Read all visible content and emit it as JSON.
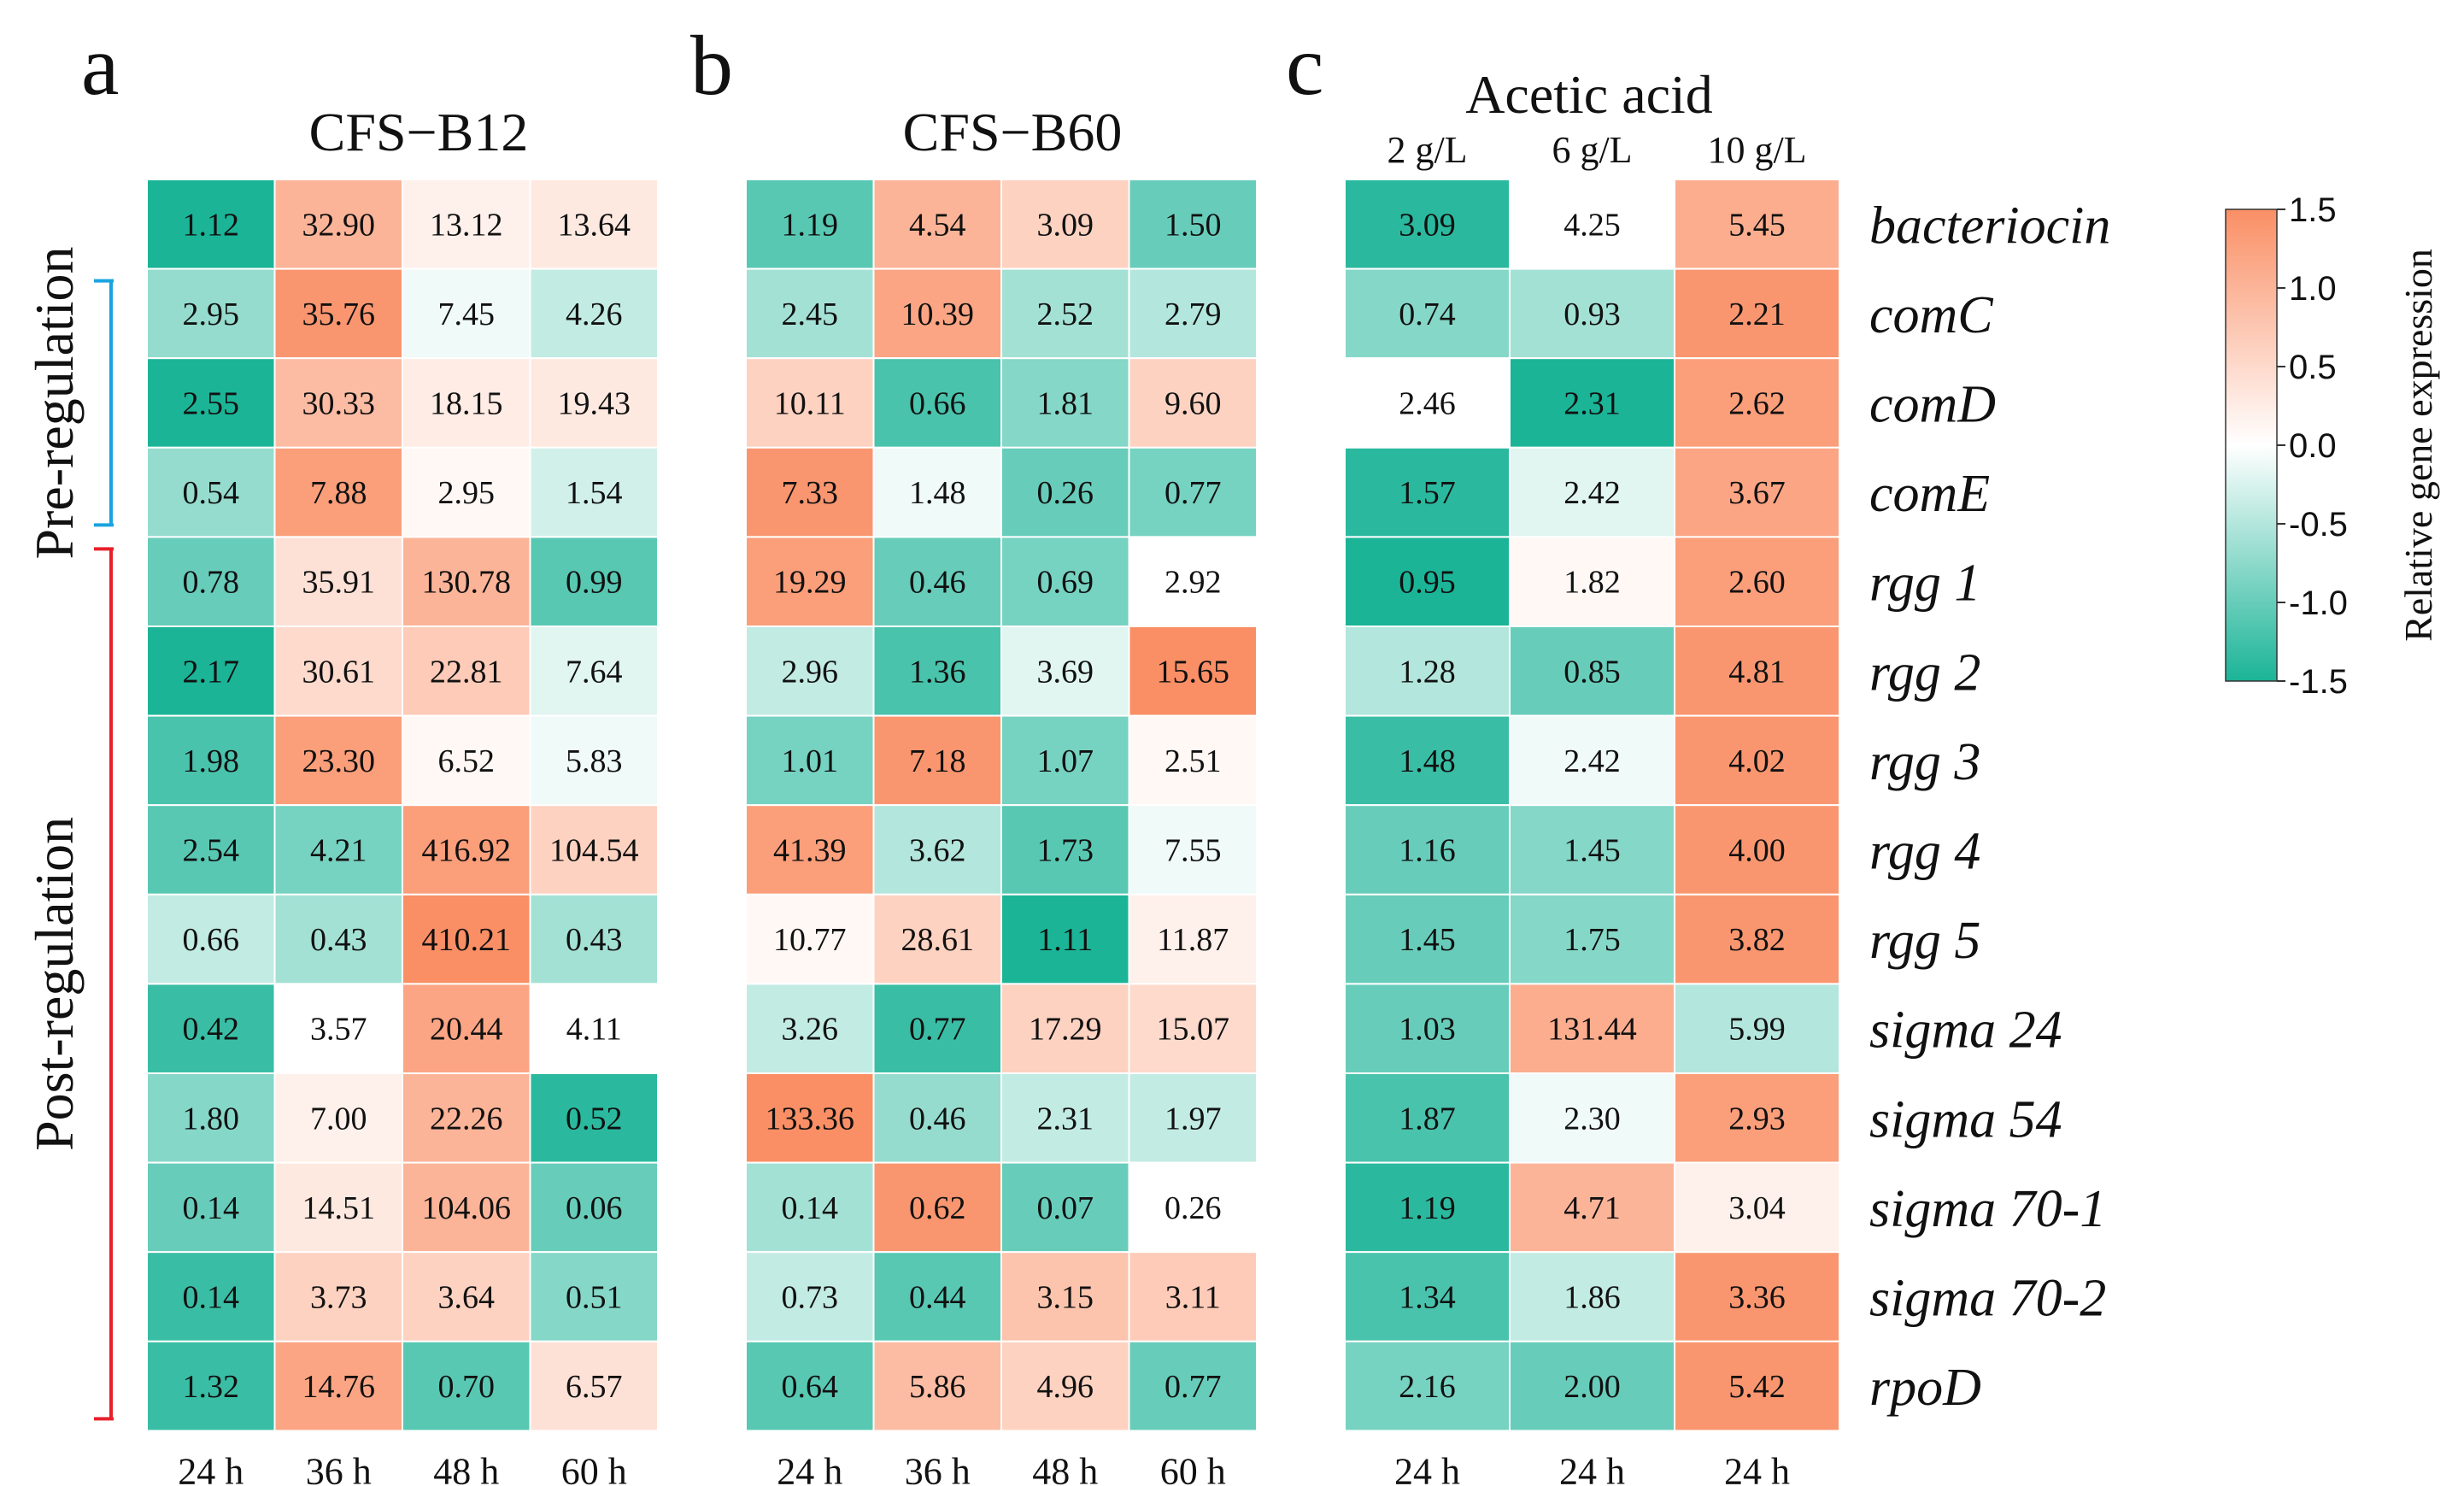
{
  "chart_data": [
    {
      "type": "heatmap",
      "panel": "a",
      "title": "CFS−B12",
      "columns": [
        "24 h",
        "36 h",
        "48 h",
        "60 h"
      ],
      "values": [
        [
          1.12,
          32.9,
          13.12,
          13.64
        ],
        [
          2.95,
          35.76,
          7.45,
          4.26
        ],
        [
          2.55,
          30.33,
          18.15,
          19.43
        ],
        [
          0.54,
          7.88,
          2.95,
          1.54
        ],
        [
          0.78,
          35.91,
          130.78,
          0.99
        ],
        [
          2.17,
          30.61,
          22.81,
          7.64
        ],
        [
          1.98,
          23.3,
          6.52,
          5.83
        ],
        [
          2.54,
          4.21,
          416.92,
          104.54
        ],
        [
          0.66,
          0.43,
          410.21,
          0.43
        ],
        [
          0.42,
          3.57,
          20.44,
          4.11
        ],
        [
          1.8,
          7.0,
          22.26,
          0.52
        ],
        [
          0.14,
          14.51,
          104.06,
          0.06
        ],
        [
          0.14,
          3.73,
          3.64,
          0.51
        ],
        [
          1.32,
          14.76,
          0.7,
          6.57
        ]
      ],
      "labels": [
        [
          "1.12",
          "32.90",
          "13.12",
          "13.64"
        ],
        [
          "2.95",
          "35.76",
          "7.45",
          "4.26"
        ],
        [
          "2.55",
          "30.33",
          "18.15",
          "19.43"
        ],
        [
          "0.54",
          "7.88",
          "2.95",
          "1.54"
        ],
        [
          "0.78",
          "35.91",
          "130.78",
          "0.99"
        ],
        [
          "2.17",
          "30.61",
          "22.81",
          "7.64"
        ],
        [
          "1.98",
          "23.30",
          "6.52",
          "5.83"
        ],
        [
          "2.54",
          "4.21",
          "416.92",
          "104.54"
        ],
        [
          "0.66",
          "0.43",
          "410.21",
          "0.43"
        ],
        [
          "0.42",
          "3.57",
          "20.44",
          "4.11"
        ],
        [
          "1.80",
          "7.00",
          "22.26",
          "0.52"
        ],
        [
          "0.14",
          "14.51",
          "104.06",
          "0.06"
        ],
        [
          "0.14",
          "3.73",
          "3.64",
          "0.51"
        ],
        [
          "1.32",
          "14.76",
          "0.70",
          "6.57"
        ]
      ],
      "z": [
        [
          -1.5,
          1.0,
          0.2,
          0.3
        ],
        [
          -0.7,
          1.4,
          -0.1,
          -0.4
        ],
        [
          -1.5,
          0.9,
          0.25,
          0.3
        ],
        [
          -0.7,
          1.3,
          0.1,
          -0.3
        ],
        [
          -1.0,
          0.4,
          1.0,
          -1.1
        ],
        [
          -1.5,
          0.5,
          0.7,
          -0.2
        ],
        [
          -1.2,
          1.3,
          0.1,
          -0.1
        ],
        [
          -1.1,
          -0.9,
          1.3,
          0.6
        ],
        [
          -0.4,
          -0.6,
          1.5,
          -0.6
        ],
        [
          -1.3,
          0.0,
          1.2,
          0.0
        ],
        [
          -0.8,
          0.2,
          1.0,
          -1.4
        ],
        [
          -1.0,
          0.3,
          1.0,
          -1.0
        ],
        [
          -1.3,
          0.6,
          0.6,
          -0.8
        ],
        [
          -1.3,
          1.2,
          -1.1,
          0.4
        ]
      ]
    },
    {
      "type": "heatmap",
      "panel": "b",
      "title": "CFS−B60",
      "columns": [
        "24 h",
        "36 h",
        "48 h",
        "60 h"
      ],
      "values": [
        [
          1.19,
          4.54,
          3.09,
          1.5
        ],
        [
          2.45,
          10.39,
          2.52,
          2.79
        ],
        [
          10.11,
          0.66,
          1.81,
          9.6
        ],
        [
          7.33,
          1.48,
          0.26,
          0.77
        ],
        [
          19.29,
          0.46,
          0.69,
          2.92
        ],
        [
          2.96,
          1.36,
          3.69,
          15.65
        ],
        [
          1.01,
          7.18,
          1.07,
          2.51
        ],
        [
          41.39,
          3.62,
          1.73,
          7.55
        ],
        [
          10.77,
          28.61,
          1.11,
          11.87
        ],
        [
          3.26,
          0.77,
          17.29,
          15.07
        ],
        [
          133.36,
          0.46,
          2.31,
          1.97
        ],
        [
          0.14,
          0.62,
          0.07,
          0.26
        ],
        [
          0.73,
          0.44,
          3.15,
          3.11
        ],
        [
          0.64,
          5.86,
          4.96,
          0.77
        ]
      ],
      "labels": [
        [
          "1.19",
          "4.54",
          "3.09",
          "1.50"
        ],
        [
          "2.45",
          "10.39",
          "2.52",
          "2.79"
        ],
        [
          "10.11",
          "0.66",
          "1.81",
          "9.60"
        ],
        [
          "7.33",
          "1.48",
          "0.26",
          "0.77"
        ],
        [
          "19.29",
          "0.46",
          "0.69",
          "2.92"
        ],
        [
          "2.96",
          "1.36",
          "3.69",
          "15.65"
        ],
        [
          "1.01",
          "7.18",
          "1.07",
          "2.51"
        ],
        [
          "41.39",
          "3.62",
          "1.73",
          "7.55"
        ],
        [
          "10.77",
          "28.61",
          "1.11",
          "11.87"
        ],
        [
          "3.26",
          "0.77",
          "17.29",
          "15.07"
        ],
        [
          "133.36",
          "0.46",
          "2.31",
          "1.97"
        ],
        [
          "0.14",
          "0.62",
          "0.07",
          "0.26"
        ],
        [
          "0.73",
          "0.44",
          "3.15",
          "3.11"
        ],
        [
          "0.64",
          "5.86",
          "4.96",
          "0.77"
        ]
      ],
      "z": [
        [
          -1.1,
          1.0,
          0.6,
          -1.0
        ],
        [
          -0.6,
          1.2,
          -0.6,
          -0.5
        ],
        [
          0.6,
          -1.2,
          -0.8,
          0.6
        ],
        [
          1.4,
          -0.1,
          -1.0,
          -0.9
        ],
        [
          1.3,
          -1.0,
          -0.9,
          0.0
        ],
        [
          -0.4,
          -1.2,
          -0.2,
          1.5
        ],
        [
          -0.9,
          1.4,
          -0.9,
          0.1
        ],
        [
          1.3,
          -0.5,
          -1.1,
          -0.1
        ],
        [
          0.1,
          0.6,
          -1.5,
          0.2
        ],
        [
          -0.4,
          -1.3,
          0.6,
          0.5
        ],
        [
          1.5,
          -0.7,
          -0.4,
          -0.4
        ],
        [
          -0.6,
          1.4,
          -1.0,
          0.0
        ],
        [
          -0.4,
          -1.1,
          0.8,
          0.7
        ],
        [
          -1.1,
          0.9,
          0.6,
          -1.0
        ]
      ]
    },
    {
      "type": "heatmap",
      "panel": "c",
      "title": "Acetic acid",
      "subcolumns": [
        "2 g/L",
        "6 g/L",
        "10 g/L"
      ],
      "columns": [
        "24 h",
        "24 h",
        "24 h"
      ],
      "rows": [
        "bacteriocin",
        "comC",
        "comD",
        "comE",
        "rgg 1",
        "rgg 2",
        "rgg 3",
        "rgg 4",
        "rgg 5",
        "sigma 24",
        "sigma 54",
        "sigma 70-1",
        "sigma 70-2",
        "rpoD"
      ],
      "values": [
        [
          3.09,
          4.25,
          5.45
        ],
        [
          0.74,
          0.93,
          2.21
        ],
        [
          2.46,
          2.31,
          2.62
        ],
        [
          1.57,
          2.42,
          3.67
        ],
        [
          0.95,
          1.82,
          2.6
        ],
        [
          1.28,
          0.85,
          4.81
        ],
        [
          1.48,
          2.42,
          4.02
        ],
        [
          1.16,
          1.45,
          4.0
        ],
        [
          1.45,
          1.75,
          3.82
        ],
        [
          1.03,
          131.44,
          5.99
        ],
        [
          1.87,
          2.3,
          2.93
        ],
        [
          1.19,
          4.71,
          3.04
        ],
        [
          1.34,
          1.86,
          3.36
        ],
        [
          2.16,
          2.0,
          5.42
        ]
      ],
      "labels": [
        [
          "3.09",
          "4.25",
          "5.45"
        ],
        [
          "0.74",
          "0.93",
          "2.21"
        ],
        [
          "2.46",
          "2.31",
          "2.62"
        ],
        [
          "1.57",
          "2.42",
          "3.67"
        ],
        [
          "0.95",
          "1.82",
          "2.60"
        ],
        [
          "1.28",
          "0.85",
          "4.81"
        ],
        [
          "1.48",
          "2.42",
          "4.02"
        ],
        [
          "1.16",
          "1.45",
          "4.00"
        ],
        [
          "1.45",
          "1.75",
          "3.82"
        ],
        [
          "1.03",
          "131.44",
          "5.99"
        ],
        [
          "1.87",
          "2.30",
          "2.93"
        ],
        [
          "1.19",
          "4.71",
          "3.04"
        ],
        [
          "1.34",
          "1.86",
          "3.36"
        ],
        [
          "2.16",
          "2.00",
          "5.42"
        ]
      ],
      "z": [
        [
          -1.4,
          0.0,
          1.1
        ],
        [
          -0.8,
          -0.6,
          1.4
        ],
        [
          0.0,
          -1.5,
          1.3
        ],
        [
          -1.4,
          -0.2,
          1.2
        ],
        [
          -1.5,
          0.1,
          1.3
        ],
        [
          -0.5,
          -1.0,
          1.4
        ],
        [
          -1.3,
          -0.1,
          1.4
        ],
        [
          -1.0,
          -0.8,
          1.4
        ],
        [
          -1.0,
          -0.8,
          1.4
        ],
        [
          -1.0,
          1.1,
          -0.5
        ],
        [
          -1.2,
          -0.1,
          1.3
        ],
        [
          -1.4,
          1.0,
          0.2
        ],
        [
          -1.2,
          -0.4,
          1.4
        ],
        [
          -0.9,
          -1.0,
          1.4
        ]
      ]
    }
  ],
  "panel_letters": [
    "a",
    "b",
    "c"
  ],
  "row_groups": [
    {
      "label": "Pre-regulation",
      "rows": [
        1,
        3
      ],
      "color": "#1aa3e0"
    },
    {
      "label": "Post-regulation",
      "rows": [
        4,
        13
      ],
      "color": "#e8202a"
    }
  ],
  "colorbar": {
    "label": "Relative gene expression",
    "min": -1.5,
    "max": 1.5,
    "ticks": [
      1.5,
      1.0,
      0.5,
      0.0,
      -0.5,
      -1.0,
      -1.5
    ],
    "tick_labels": [
      "1.5",
      "1.0",
      "0.5",
      "0.0",
      "-0.5",
      "-1.0",
      "-1.5"
    ],
    "colors": {
      "low": "#1bb497",
      "mid": "#ffffff",
      "high": "#fa8f65"
    }
  }
}
